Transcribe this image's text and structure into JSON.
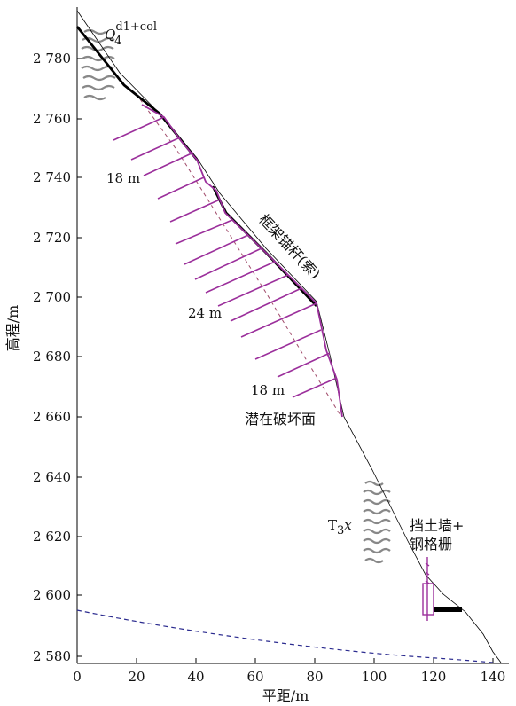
{
  "diagram": {
    "y_axis_title": "高程/m",
    "x_axis_title": "平距/m",
    "x_ticks": [
      "0",
      "20",
      "40",
      "60",
      "80",
      "100",
      "120",
      "140"
    ],
    "y_ticks": [
      "2 580",
      "2 600",
      "2 620",
      "2 640",
      "2 660",
      "2 680",
      "2 700",
      "2 720",
      "2 740",
      "2 760",
      "2 780"
    ],
    "labels": {
      "deposit_symbol": "Q",
      "deposit_sub": "4",
      "deposit_sup": "d1+col",
      "anchor_18m_upper": "18 m",
      "anchor_24m": "24 m",
      "anchor_18m_lower": "18 m",
      "frame_anchor": "框架锚杆(索)",
      "slip_surface": "潜在破坏面",
      "bedrock_symbol": "T",
      "bedrock_sub": "3",
      "bedrock_x": "x",
      "wall_line1": "挡土墙+",
      "wall_line2": "钢格栅"
    },
    "colors": {
      "anchor": "#9b2f9b",
      "slip_surface": "#a04a6a",
      "lower_boundary": "#2b2b8f",
      "ground": "#000000",
      "hatch": "#888888"
    }
  }
}
